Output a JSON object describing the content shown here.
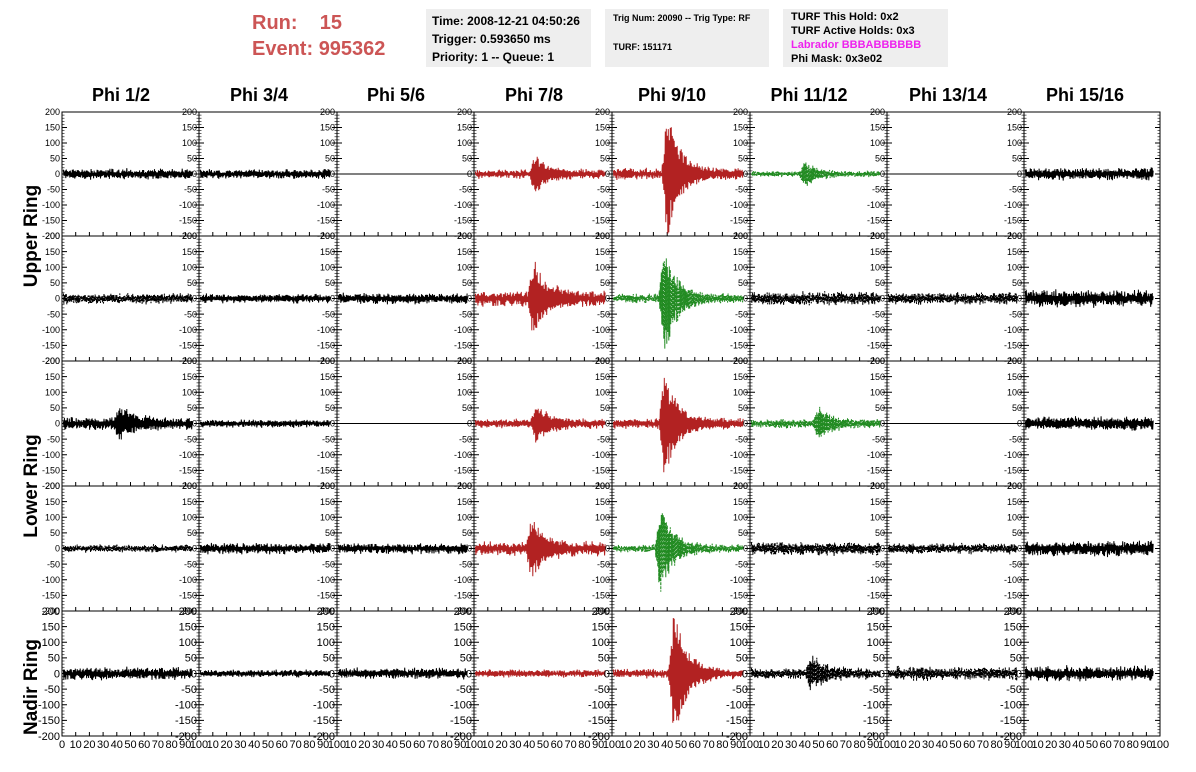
{
  "header": {
    "run_label": "Run:",
    "run_value": "15",
    "event_label": "Event:",
    "event_value": "995362",
    "time": "Time: 2008-12-21 04:50:26",
    "trigger": "Trigger: 0.593650 ms",
    "priority": "Priority: 1 -- Queue: 1",
    "trig_num": "Trig Num: 20090 -- Trig Type: RF",
    "turf": "TURF: 151171",
    "turf_hold": "TURF This Hold: 0x2",
    "turf_active": "TURF Active Holds: 0x3",
    "labrador": "Labrador BBBABBBBBB",
    "phi_mask": "Phi Mask: 0x3e02"
  },
  "columns": [
    "Phi 1/2",
    "Phi 3/4",
    "Phi 5/6",
    "Phi 7/8",
    "Phi 9/10",
    "Phi 11/12",
    "Phi 13/14",
    "Phi 15/16"
  ],
  "rings": [
    "Upper Ring",
    "Lower Ring",
    "Nadir Ring"
  ],
  "colors": {
    "normal": "#000000",
    "triggered": "#b22222",
    "masked": "#228b22"
  },
  "chart_data": {
    "type": "line",
    "xlim": [
      0,
      100
    ],
    "ylim": [
      -200,
      200
    ],
    "xticks": [
      0,
      10,
      20,
      30,
      40,
      50,
      60,
      70,
      80,
      90,
      100
    ],
    "yticks": [
      -200,
      -150,
      -100,
      -50,
      0,
      50,
      100,
      150,
      200
    ],
    "panel_rows": 5,
    "panel_cols": 8,
    "panels": [
      [
        {
          "style": "black",
          "amp": 14,
          "burst": 0,
          "dashed": false,
          "flat": false
        },
        {
          "style": "black",
          "amp": 12,
          "burst": 0,
          "dashed": false,
          "flat": false
        },
        {
          "style": "black",
          "amp": 0,
          "burst": 0,
          "dashed": false,
          "flat": true
        },
        {
          "style": "red",
          "amp": 12,
          "burst": 55,
          "burst_at": 44,
          "dashed": false,
          "flat": false
        },
        {
          "style": "red",
          "amp": 15,
          "burst": 200,
          "burst_at": 40,
          "dashed": false,
          "flat": false
        },
        {
          "style": "green",
          "amp": 8,
          "burst": 35,
          "burst_at": 40,
          "dashed": true,
          "flat": false
        },
        {
          "style": "black",
          "amp": 0,
          "burst": 0,
          "dashed": false,
          "flat": true
        },
        {
          "style": "black",
          "amp": 16,
          "burst": 0,
          "dashed": false,
          "flat": false
        }
      ],
      [
        {
          "style": "black",
          "amp": 14,
          "burst": 0,
          "dashed": true,
          "flat": false
        },
        {
          "style": "black",
          "amp": 12,
          "burst": 0,
          "dashed": false,
          "flat": false
        },
        {
          "style": "black",
          "amp": 14,
          "burst": 0,
          "dashed": false,
          "flat": false
        },
        {
          "style": "red",
          "amp": 20,
          "burst": 110,
          "burst_at": 43,
          "dashed": false,
          "flat": false
        },
        {
          "style": "green",
          "amp": 12,
          "burst": 170,
          "burst_at": 38,
          "dashed": true,
          "flat": false
        },
        {
          "style": "black",
          "amp": 18,
          "burst": 0,
          "dashed": true,
          "flat": false
        },
        {
          "style": "black",
          "amp": 16,
          "burst": 0,
          "dashed": true,
          "flat": false
        },
        {
          "style": "black",
          "amp": 22,
          "burst": 0,
          "dashed": false,
          "flat": false
        }
      ],
      [
        {
          "style": "black",
          "amp": 16,
          "burst": 45,
          "burst_at": 42,
          "dashed": false,
          "flat": false
        },
        {
          "style": "black",
          "amp": 10,
          "burst": 0,
          "dashed": false,
          "flat": false
        },
        {
          "style": "black",
          "amp": 0,
          "burst": 0,
          "dashed": false,
          "flat": true
        },
        {
          "style": "red",
          "amp": 12,
          "burst": 55,
          "burst_at": 45,
          "dashed": false,
          "flat": false
        },
        {
          "style": "red",
          "amp": 14,
          "burst": 170,
          "burst_at": 38,
          "dashed": false,
          "flat": false
        },
        {
          "style": "green",
          "amp": 12,
          "burst": 45,
          "burst_at": 50,
          "dashed": true,
          "flat": false
        },
        {
          "style": "black",
          "amp": 0,
          "burst": 0,
          "dashed": false,
          "flat": true
        },
        {
          "style": "black",
          "amp": 18,
          "burst": 0,
          "dashed": false,
          "flat": false
        }
      ],
      [
        {
          "style": "black",
          "amp": 10,
          "burst": 0,
          "dashed": true,
          "flat": false
        },
        {
          "style": "black",
          "amp": 14,
          "burst": 0,
          "dashed": false,
          "flat": false
        },
        {
          "style": "black",
          "amp": 14,
          "burst": 0,
          "dashed": false,
          "flat": false
        },
        {
          "style": "red",
          "amp": 18,
          "burst": 90,
          "burst_at": 42,
          "dashed": false,
          "flat": false
        },
        {
          "style": "green",
          "amp": 10,
          "burst": 140,
          "burst_at": 35,
          "dashed": true,
          "flat": false
        },
        {
          "style": "black",
          "amp": 18,
          "burst": 0,
          "dashed": true,
          "flat": false
        },
        {
          "style": "black",
          "amp": 14,
          "burst": 0,
          "dashed": true,
          "flat": false
        },
        {
          "style": "black",
          "amp": 20,
          "burst": 0,
          "dashed": false,
          "flat": false
        }
      ],
      [
        {
          "style": "black",
          "amp": 16,
          "burst": 0,
          "dashed": false,
          "flat": false
        },
        {
          "style": "black",
          "amp": 10,
          "burst": 0,
          "dashed": false,
          "flat": false
        },
        {
          "style": "black",
          "amp": 14,
          "burst": 0,
          "dashed": false,
          "flat": false
        },
        {
          "style": "red",
          "amp": 10,
          "burst": 0,
          "dashed": false,
          "flat": false
        },
        {
          "style": "red",
          "amp": 12,
          "burst": 210,
          "burst_at": 45,
          "dashed": false,
          "flat": false
        },
        {
          "style": "black",
          "amp": 14,
          "burst": 50,
          "burst_at": 45,
          "dashed": true,
          "flat": false
        },
        {
          "style": "black",
          "amp": 18,
          "burst": 0,
          "dashed": true,
          "flat": false
        },
        {
          "style": "black",
          "amp": 20,
          "burst": 0,
          "dashed": false,
          "flat": false
        }
      ]
    ]
  }
}
